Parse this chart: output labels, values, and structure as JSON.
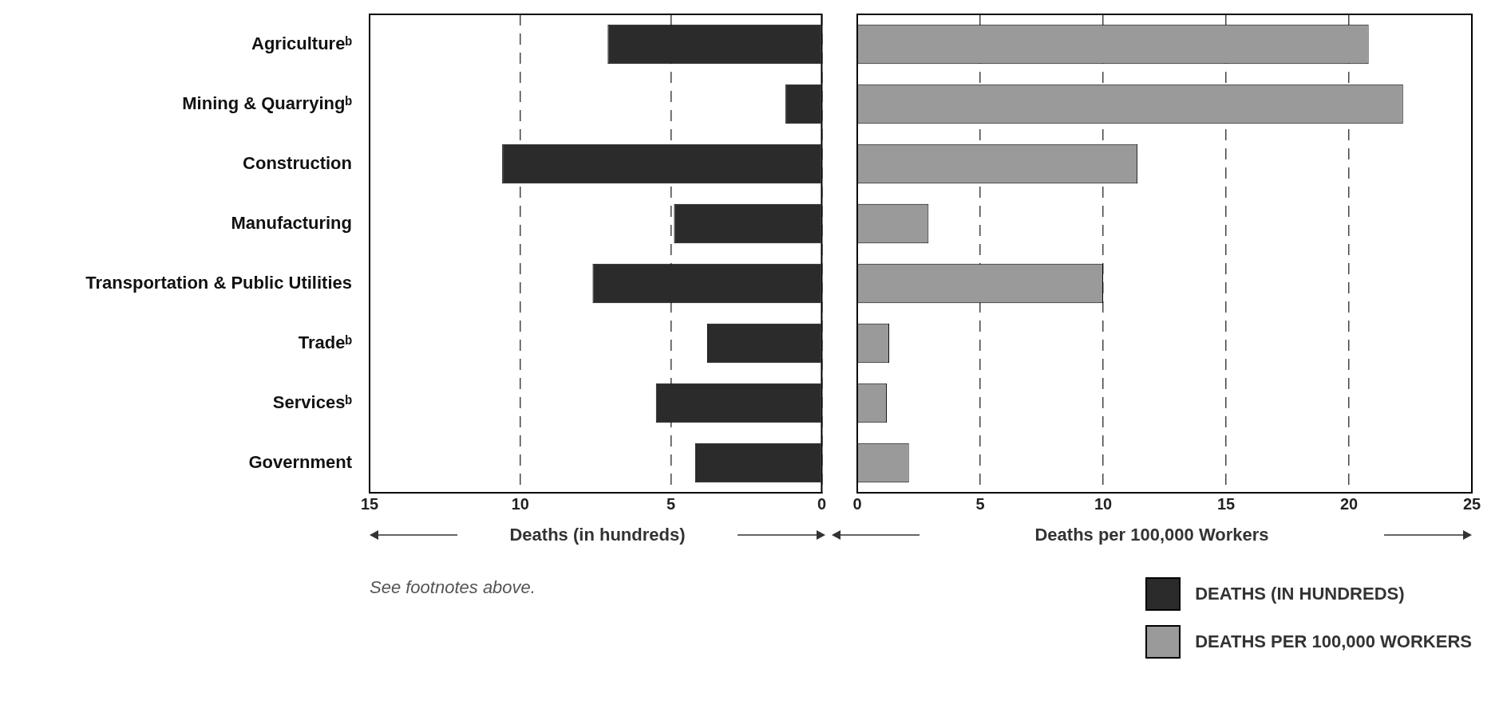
{
  "chart_data": [
    {
      "type": "bar",
      "orientation": "horizontal",
      "categories": [
        "Agricultureᵇ",
        "Mining & Quarryingᵇ",
        "Construction",
        "Manufacturing",
        "Transportation & Public Utilities",
        "Tradeᵇ",
        "Servicesᵇ",
        "Government"
      ],
      "series": [
        {
          "name": "DEATHS (IN HUNDREDS)",
          "color": "#2b2b2b",
          "values": [
            7.1,
            1.2,
            10.6,
            4.9,
            7.6,
            3.8,
            5.5,
            4.2
          ]
        }
      ],
      "xlim": [
        15,
        0
      ],
      "xticks": [
        15,
        10,
        5,
        0
      ],
      "xlabel": "Deaths (in hundreds)",
      "grid": "x",
      "legend": "bottom right",
      "annotations": [
        "See footnotes above."
      ]
    },
    {
      "type": "bar",
      "orientation": "horizontal",
      "categories": [
        null,
        null,
        null,
        null,
        null,
        null,
        null,
        null
      ],
      "series": [
        {
          "name": "DEATHS PER 100,000 WORKERS",
          "color": "#9a9a9a",
          "values": [
            20.8,
            22.2,
            11.4,
            2.9,
            10.0,
            1.3,
            1.2,
            2.1
          ]
        }
      ],
      "xlim": [
        0,
        25
      ],
      "xticks": [
        0,
        5,
        10,
        15,
        20,
        25
      ],
      "xlabel": "Deaths per 100,000 Workers",
      "grid": "x",
      "legend": "bottom right"
    }
  ]
}
